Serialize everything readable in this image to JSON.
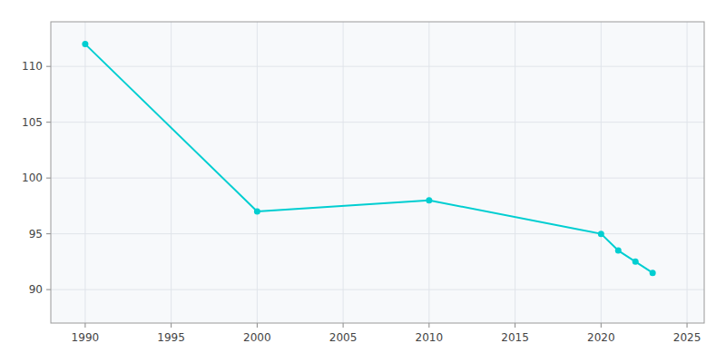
{
  "chart_data": {
    "type": "line",
    "x": [
      1990,
      2000,
      2010,
      2020,
      2021,
      2022,
      2023
    ],
    "values": [
      112,
      97,
      98,
      95,
      93.5,
      92.5,
      91.5
    ],
    "color": "#00CED1",
    "marker": "circle",
    "xlim": [
      1988,
      2026
    ],
    "ylim": [
      87,
      114
    ],
    "xticks": [
      1990,
      1995,
      2000,
      2005,
      2010,
      2015,
      2020,
      2025
    ],
    "yticks": [
      90,
      95,
      100,
      105,
      110
    ],
    "grid": true
  }
}
